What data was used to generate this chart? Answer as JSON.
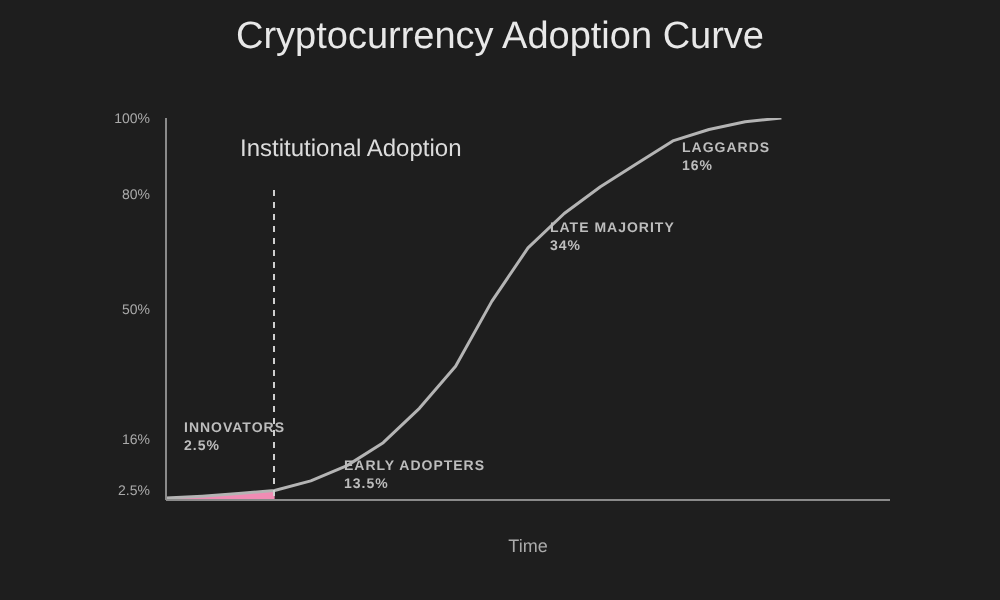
{
  "chart_data": {
    "type": "line",
    "title": "Cryptocurrency Adoption Curve",
    "xlabel": "Time",
    "tick_labels": "y",
    "grid": false,
    "legend": false,
    "marker": "none",
    "categories": [
      null,
      null,
      null,
      null,
      null,
      null,
      null,
      null,
      null,
      null,
      null,
      null,
      null,
      null,
      null,
      null,
      null,
      null,
      null,
      null,
      null
    ],
    "ylim": [
      0,
      100
    ],
    "yticks": [
      {
        "value": 2.5,
        "label": "2.5%"
      },
      {
        "value": 16,
        "label": "16%"
      },
      {
        "value": 50,
        "label": "50%"
      },
      {
        "value": 80,
        "label": "80%"
      },
      {
        "value": 100,
        "label": "100%"
      }
    ],
    "series": [
      {
        "type": "area",
        "color": "#f08cb4",
        "values": [
          0.5,
          1,
          1.7,
          2.5,
          null,
          null,
          null,
          null,
          null,
          null,
          null,
          null,
          null,
          null,
          null,
          null,
          null,
          null,
          null,
          null,
          null
        ]
      },
      {
        "color": "#b4b4b4",
        "values": [
          0.5,
          1,
          1.7,
          2.5,
          5,
          9,
          15,
          24,
          35,
          52,
          66,
          75,
          82,
          88,
          94,
          97,
          99,
          100,
          null,
          null,
          null
        ]
      }
    ],
    "annotations": [
      "Institutional Adoption",
      "INNOVATORS\n2.5%",
      "EARLY ADOPTERS\n13.5%",
      "LATE MAJORITY\n34%",
      "LAGGARDS\n16%"
    ]
  }
}
